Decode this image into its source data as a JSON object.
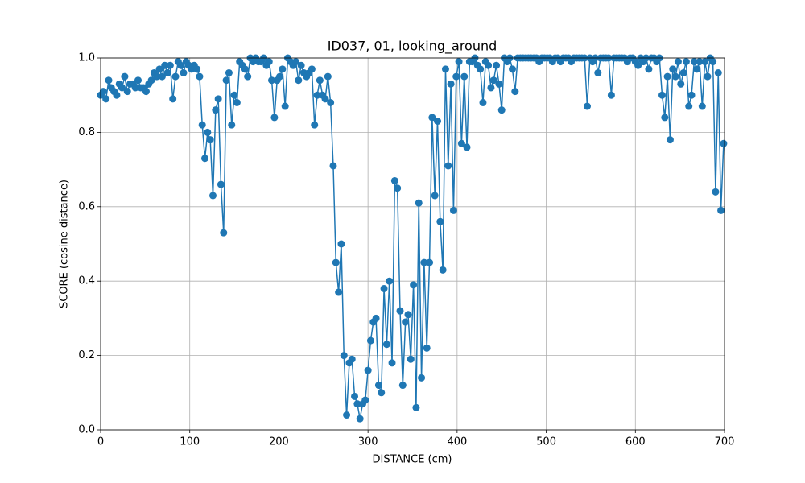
{
  "chart_data": {
    "type": "line",
    "title": "ID037, 01, looking_around",
    "xlabel": "DISTANCE (cm)",
    "ylabel": "SCORE (cosine distance)",
    "xlim": [
      0,
      700
    ],
    "ylim": [
      0,
      1
    ],
    "xticks": [
      0,
      100,
      200,
      300,
      400,
      500,
      600,
      700
    ],
    "yticks": [
      {
        "value": 0,
        "label": "0.0"
      },
      {
        "value": 0.2,
        "label": "0.2"
      },
      {
        "value": 0.4,
        "label": "0.4"
      },
      {
        "value": 0.6,
        "label": "0.6"
      },
      {
        "value": 0.8,
        "label": "0.8"
      },
      {
        "value": 1,
        "label": "1.0"
      }
    ],
    "grid": true,
    "x": [
      0,
      3,
      6,
      9,
      12,
      15,
      18,
      21,
      24,
      27,
      30,
      33,
      36,
      39,
      42,
      45,
      48,
      51,
      54,
      57,
      60,
      63,
      66,
      69,
      72,
      75,
      78,
      81,
      84,
      87,
      90,
      93,
      96,
      99,
      102,
      105,
      108,
      111,
      114,
      117,
      120,
      123,
      126,
      129,
      132,
      135,
      138,
      141,
      144,
      147,
      150,
      153,
      156,
      159,
      162,
      165,
      168,
      171,
      174,
      177,
      180,
      183,
      186,
      189,
      192,
      195,
      198,
      201,
      204,
      207,
      210,
      213,
      216,
      219,
      222,
      225,
      228,
      231,
      234,
      237,
      240,
      243,
      246,
      249,
      252,
      255,
      258,
      261,
      264,
      267,
      270,
      273,
      276,
      279,
      282,
      285,
      288,
      291,
      294,
      297,
      300,
      303,
      306,
      309,
      312,
      315,
      318,
      321,
      324,
      327,
      330,
      333,
      336,
      339,
      342,
      345,
      348,
      351,
      354,
      357,
      360,
      363,
      366,
      369,
      372,
      375,
      378,
      381,
      384,
      387,
      390,
      393,
      396,
      399,
      402,
      405,
      408,
      411,
      414,
      417,
      420,
      423,
      426,
      429,
      432,
      435,
      438,
      441,
      444,
      447,
      450,
      453,
      456,
      459,
      462,
      465,
      468,
      471,
      474,
      477,
      480,
      483,
      486,
      489,
      492,
      495,
      498,
      501,
      504,
      507,
      510,
      513,
      516,
      519,
      522,
      525,
      528,
      531,
      534,
      537,
      540,
      543,
      546,
      549,
      552,
      555,
      558,
      561,
      564,
      567,
      570,
      573,
      576,
      579,
      582,
      585,
      588,
      591,
      594,
      597,
      600,
      603,
      606,
      609,
      612,
      615,
      618,
      621,
      624,
      627,
      630,
      633,
      636,
      639,
      642,
      645,
      648,
      651,
      654,
      657,
      660,
      663,
      666,
      669,
      672,
      675,
      678,
      681,
      684,
      687,
      690,
      693,
      696,
      699
    ],
    "series": [
      {
        "name": "score",
        "color": "#1f77b4",
        "values": [
          0.9,
          0.91,
          0.89,
          0.94,
          0.92,
          0.91,
          0.9,
          0.93,
          0.92,
          0.95,
          0.91,
          0.93,
          0.93,
          0.92,
          0.94,
          0.92,
          0.92,
          0.91,
          0.93,
          0.94,
          0.96,
          0.95,
          0.97,
          0.95,
          0.98,
          0.96,
          0.98,
          0.89,
          0.95,
          0.99,
          0.98,
          0.96,
          0.99,
          0.98,
          0.97,
          0.98,
          0.97,
          0.95,
          0.82,
          0.73,
          0.8,
          0.78,
          0.63,
          0.86,
          0.89,
          0.66,
          0.53,
          0.94,
          0.96,
          0.82,
          0.9,
          0.88,
          0.99,
          0.98,
          0.97,
          0.95,
          1,
          0.99,
          1,
          0.99,
          0.99,
          1,
          0.98,
          0.99,
          0.94,
          0.84,
          0.94,
          0.95,
          0.97,
          0.87,
          1,
          0.99,
          0.98,
          0.99,
          0.94,
          0.98,
          0.96,
          0.95,
          0.96,
          0.97,
          0.82,
          0.9,
          0.94,
          0.9,
          0.89,
          0.95,
          0.88,
          0.71,
          0.45,
          0.37,
          0.5,
          0.2,
          0.04,
          0.18,
          0.19,
          0.09,
          0.07,
          0.03,
          0.07,
          0.08,
          0.16,
          0.24,
          0.29,
          0.3,
          0.12,
          0.1,
          0.38,
          0.23,
          0.4,
          0.18,
          0.67,
          0.65,
          0.32,
          0.12,
          0.29,
          0.31,
          0.19,
          0.39,
          0.06,
          0.61,
          0.14,
          0.45,
          0.22,
          0.45,
          0.84,
          0.63,
          0.83,
          0.56,
          0.43,
          0.97,
          0.71,
          0.93,
          0.59,
          0.95,
          0.99,
          0.77,
          0.95,
          0.76,
          0.99,
          0.99,
          1,
          0.98,
          0.97,
          0.88,
          0.99,
          0.98,
          0.92,
          0.94,
          0.98,
          0.93,
          0.86,
          1,
          0.99,
          1,
          0.97,
          0.91,
          1,
          1,
          1,
          1,
          1,
          1,
          1,
          1,
          0.99,
          1,
          1,
          1,
          1,
          0.99,
          1,
          1,
          0.99,
          1,
          1,
          1,
          0.99,
          1,
          1,
          1,
          1,
          1,
          0.87,
          1,
          0.99,
          1,
          0.96,
          1,
          1,
          1,
          1,
          0.9,
          1,
          1,
          1,
          1,
          1,
          0.99,
          1,
          1,
          0.99,
          0.98,
          1,
          0.99,
          1,
          0.97,
          1,
          1,
          0.99,
          1,
          0.9,
          0.84,
          0.95,
          0.78,
          0.97,
          0.95,
          0.99,
          0.93,
          0.96,
          0.99,
          0.87,
          0.9,
          0.99,
          0.97,
          0.99,
          0.87,
          0.99,
          0.95,
          1,
          0.99,
          0.64,
          0.96,
          0.59,
          0.77
        ]
      }
    ]
  }
}
